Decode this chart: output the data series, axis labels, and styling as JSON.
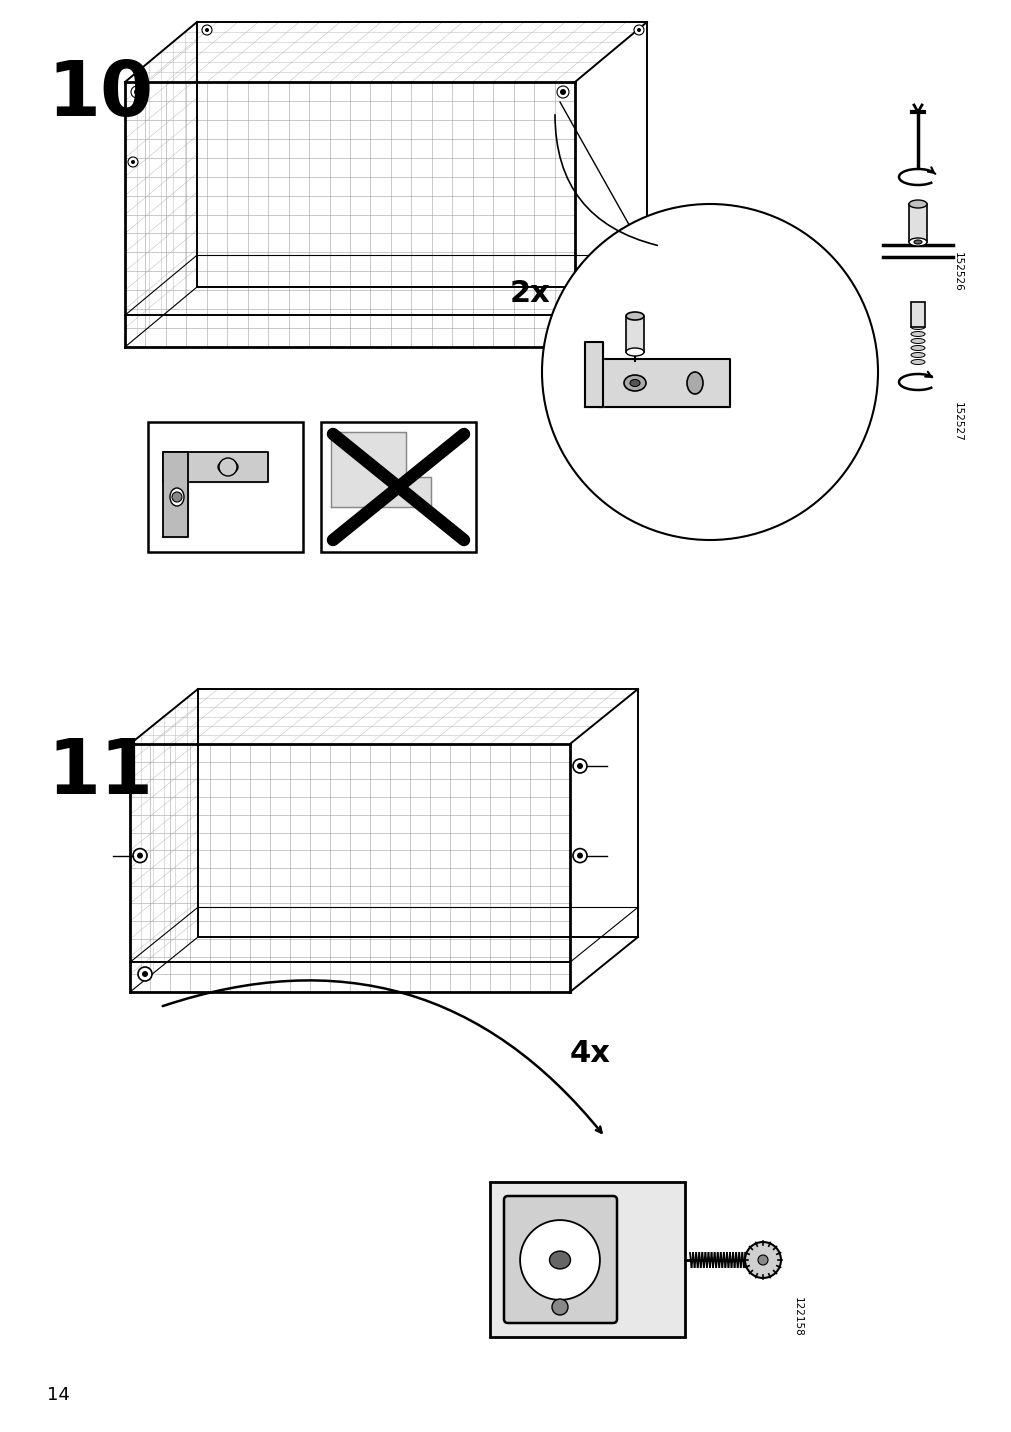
{
  "bg_color": "#ffffff",
  "page_number": "14",
  "step10_label": "10",
  "step11_label": "11",
  "quantity_2x": "2x",
  "quantity_4x": "4x",
  "part_id_1": "152526",
  "part_id_2": "152527",
  "part_id_3": "122158",
  "fig_width": 10.12,
  "fig_height": 14.32,
  "dpi": 100
}
